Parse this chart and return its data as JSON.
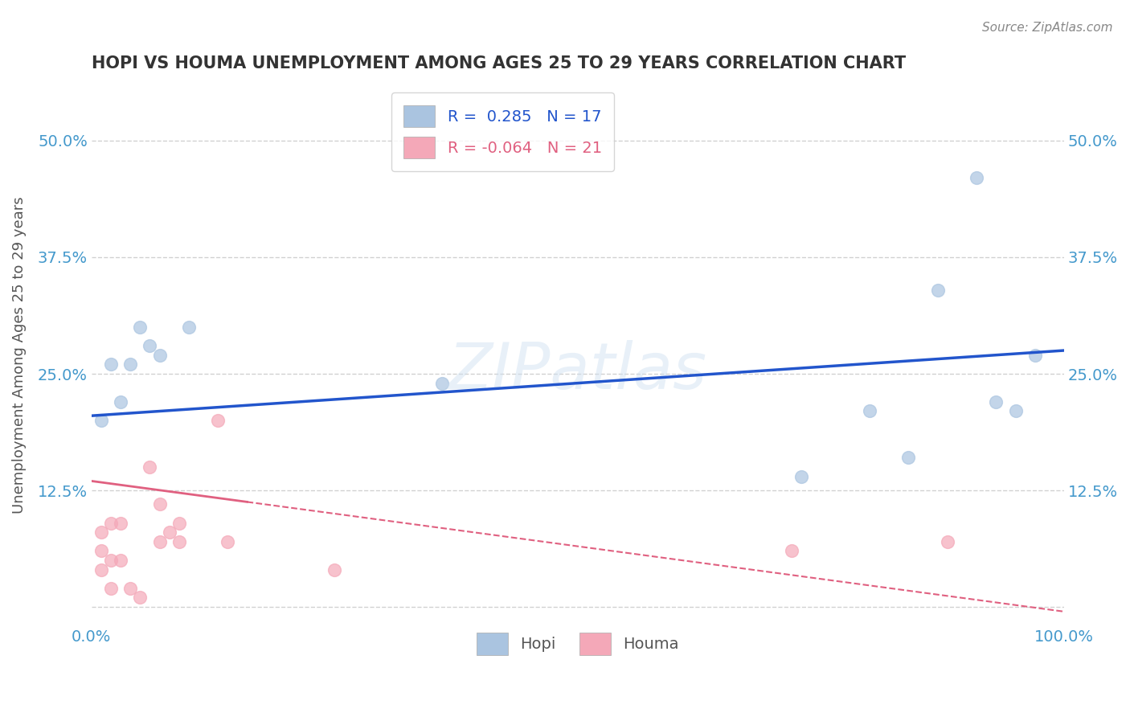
{
  "title": "HOPI VS HOUMA UNEMPLOYMENT AMONG AGES 25 TO 29 YEARS CORRELATION CHART",
  "source": "Source: ZipAtlas.com",
  "ylabel": "Unemployment Among Ages 25 to 29 years",
  "hopi_R": 0.285,
  "hopi_N": 17,
  "houma_R": -0.064,
  "houma_N": 21,
  "hopi_color": "#aac4e0",
  "houma_color": "#f4a8b8",
  "hopi_line_color": "#2255cc",
  "houma_line_color": "#e06080",
  "title_color": "#333333",
  "axis_label_color": "#555555",
  "tick_color": "#4499cc",
  "grid_color": "#cccccc",
  "xlim": [
    0.0,
    1.0
  ],
  "ylim": [
    -0.02,
    0.56
  ],
  "yticks": [
    0.0,
    0.125,
    0.25,
    0.375,
    0.5
  ],
  "ytick_labels": [
    "",
    "12.5%",
    "25.0%",
    "37.5%",
    "50.0%"
  ],
  "xticks": [
    0.0,
    1.0
  ],
  "xtick_labels": [
    "0.0%",
    "100.0%"
  ],
  "hopi_x": [
    0.01,
    0.02,
    0.03,
    0.04,
    0.05,
    0.06,
    0.07,
    0.1,
    0.36,
    0.73,
    0.8,
    0.84,
    0.87,
    0.91,
    0.93,
    0.95,
    0.97
  ],
  "hopi_y": [
    0.2,
    0.26,
    0.22,
    0.26,
    0.3,
    0.28,
    0.27,
    0.3,
    0.24,
    0.14,
    0.21,
    0.16,
    0.34,
    0.46,
    0.22,
    0.21,
    0.27
  ],
  "houma_x": [
    0.01,
    0.01,
    0.01,
    0.02,
    0.02,
    0.02,
    0.03,
    0.03,
    0.04,
    0.05,
    0.06,
    0.07,
    0.07,
    0.08,
    0.09,
    0.09,
    0.13,
    0.14,
    0.25,
    0.72,
    0.88
  ],
  "houma_y": [
    0.04,
    0.06,
    0.08,
    0.02,
    0.05,
    0.09,
    0.05,
    0.09,
    0.02,
    0.01,
    0.15,
    0.07,
    0.11,
    0.08,
    0.07,
    0.09,
    0.2,
    0.07,
    0.04,
    0.06,
    0.07
  ],
  "hopi_trendline_x": [
    0.0,
    1.0
  ],
  "hopi_trendline_y": [
    0.205,
    0.275
  ],
  "houma_trendline_x": [
    0.0,
    1.0
  ],
  "houma_trendline_y": [
    0.135,
    -0.005
  ],
  "background_color": "#ffffff",
  "marker_size": 130
}
